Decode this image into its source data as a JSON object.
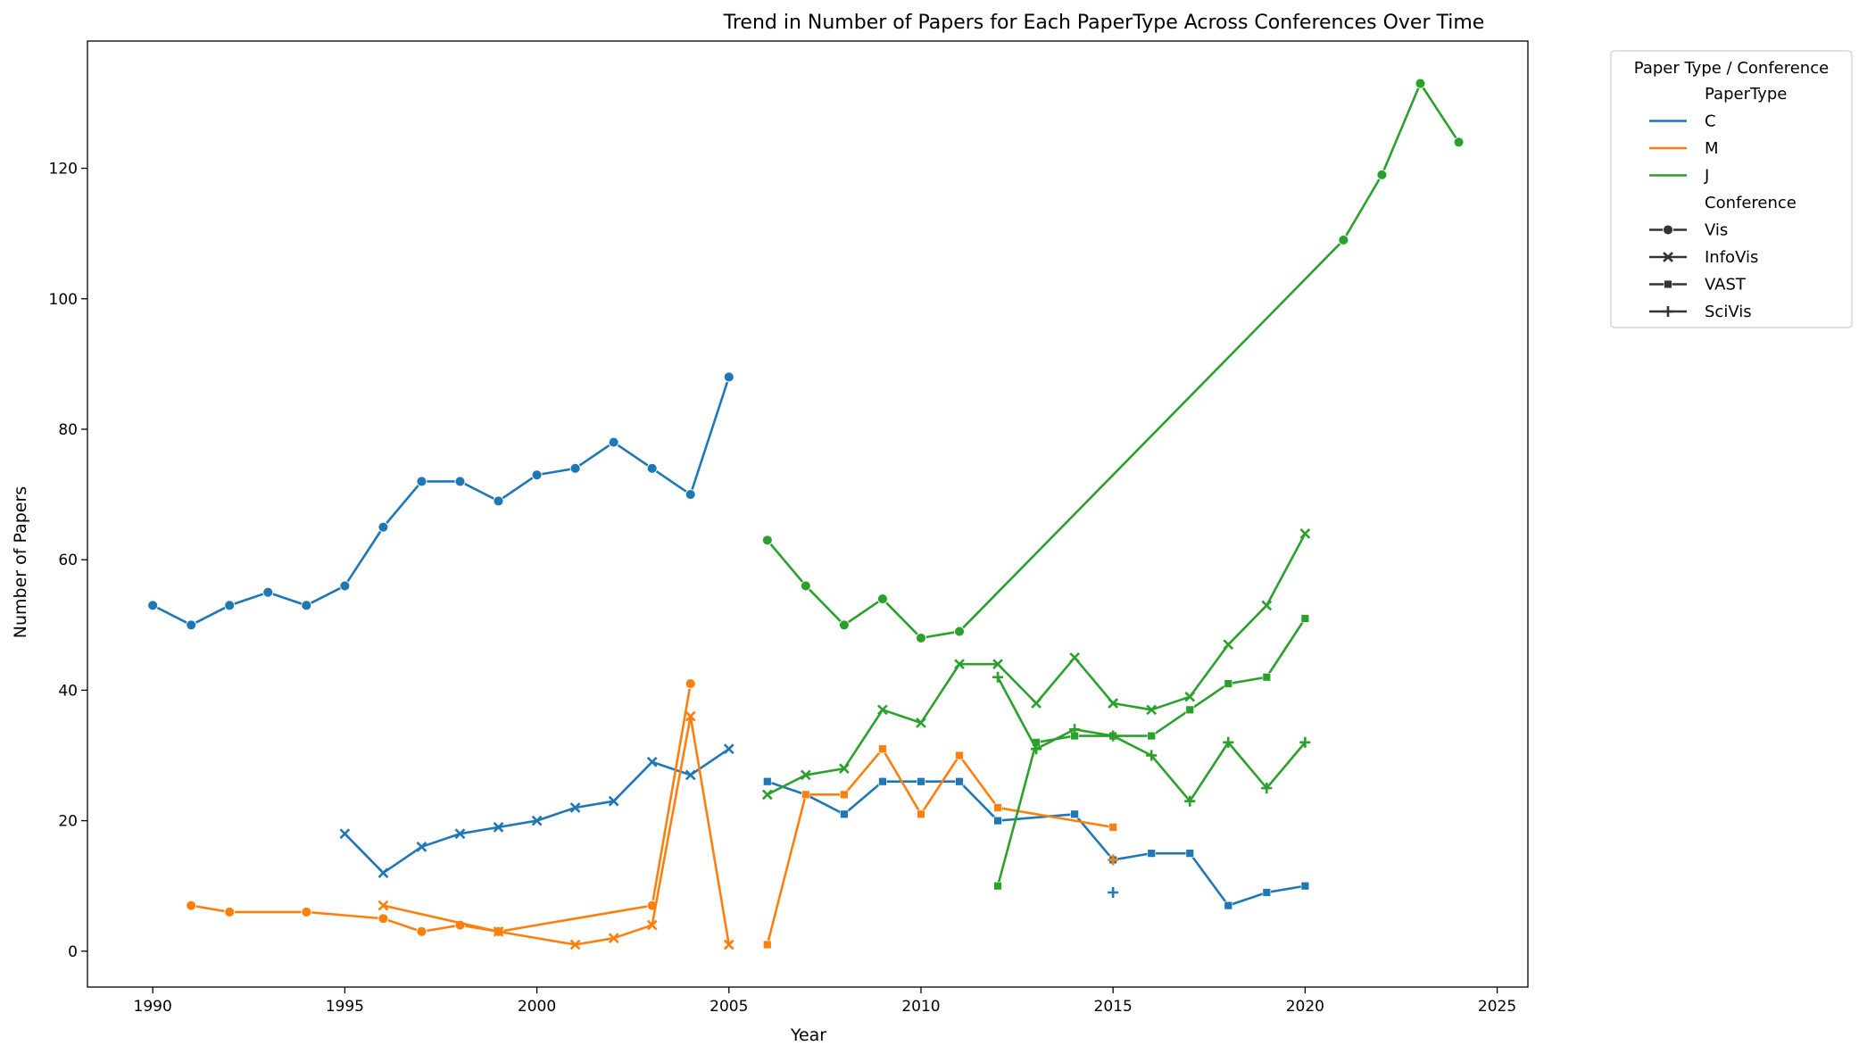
{
  "chart_data": {
    "type": "line",
    "title": "Trend in Number of Papers for Each PaperType Across Conferences Over Time",
    "xlabel": "Year",
    "ylabel": "Number of Papers",
    "xlim": [
      1988.3,
      2025.8
    ],
    "ylim": [
      -5.5,
      139.5
    ],
    "xticks": [
      1990,
      1995,
      2000,
      2005,
      2010,
      2015,
      2020,
      2025
    ],
    "yticks": [
      0,
      20,
      40,
      60,
      80,
      100,
      120
    ],
    "grid": false,
    "legend": {
      "title": "Paper Type / Conference",
      "placement": "outside-top-right",
      "hue_title": "PaperType",
      "hue_entries": [
        {
          "label": "C",
          "color": "#1f77b4"
        },
        {
          "label": "M",
          "color": "#ff7f0e"
        },
        {
          "label": "J",
          "color": "#2ca02c"
        }
      ],
      "style_title": "Conference",
      "style_entries": [
        {
          "label": "Vis",
          "marker": "circle"
        },
        {
          "label": "InfoVis",
          "marker": "x"
        },
        {
          "label": "VAST",
          "marker": "square"
        },
        {
          "label": "SciVis",
          "marker": "plus"
        }
      ]
    },
    "series": [
      {
        "paper_type": "C",
        "conference": "Vis",
        "color": "#1f77b4",
        "marker": "circle",
        "x": [
          1990,
          1991,
          1992,
          1993,
          1994,
          1995,
          1996,
          1997,
          1998,
          1999,
          2000,
          2001,
          2002,
          2003,
          2004,
          2005
        ],
        "y": [
          53,
          50,
          53,
          55,
          53,
          56,
          65,
          72,
          72,
          69,
          73,
          74,
          78,
          74,
          70,
          88
        ]
      },
      {
        "paper_type": "C",
        "conference": "InfoVis",
        "color": "#1f77b4",
        "marker": "x",
        "x": [
          1995,
          1996,
          1997,
          1998,
          1999,
          2000,
          2001,
          2002,
          2003,
          2004,
          2005
        ],
        "y": [
          18,
          12,
          16,
          18,
          19,
          20,
          22,
          23,
          29,
          27,
          31
        ]
      },
      {
        "paper_type": "C",
        "conference": "VAST",
        "color": "#1f77b4",
        "marker": "square",
        "x": [
          2006,
          2007,
          2008,
          2009,
          2010,
          2011,
          2012,
          2014,
          2015,
          2016,
          2017,
          2018,
          2019,
          2020
        ],
        "y": [
          26,
          24,
          21,
          26,
          26,
          26,
          20,
          21,
          14,
          15,
          15,
          7,
          9,
          10
        ]
      },
      {
        "paper_type": "C",
        "conference": "SciVis",
        "color": "#1f77b4",
        "marker": "plus",
        "x": [
          2015
        ],
        "y": [
          9
        ]
      },
      {
        "paper_type": "M",
        "conference": "Vis",
        "color": "#ff7f0e",
        "marker": "circle",
        "x": [
          1991,
          1992,
          1994,
          1996,
          1997,
          1998,
          1999,
          2003,
          2004
        ],
        "y": [
          7,
          6,
          6,
          5,
          3,
          4,
          3,
          7,
          41
        ]
      },
      {
        "paper_type": "M",
        "conference": "InfoVis",
        "color": "#ff7f0e",
        "marker": "x",
        "x": [
          1996,
          1999,
          2001,
          2002,
          2003,
          2004,
          2005
        ],
        "y": [
          7,
          3,
          1,
          2,
          4,
          36,
          1
        ]
      },
      {
        "paper_type": "M",
        "conference": "VAST",
        "color": "#ff7f0e",
        "marker": "square",
        "x": [
          2006,
          2007,
          2008,
          2009,
          2010,
          2011,
          2012,
          2015
        ],
        "y": [
          1,
          24,
          24,
          31,
          21,
          30,
          22,
          19
        ]
      },
      {
        "paper_type": "M",
        "conference": "SciVis",
        "color": "#ff7f0e",
        "marker": "plus",
        "x": [
          2015
        ],
        "y": [
          14
        ]
      },
      {
        "paper_type": "J",
        "conference": "Vis",
        "color": "#2ca02c",
        "marker": "circle",
        "x": [
          2006,
          2007,
          2008,
          2009,
          2010,
          2011,
          2021,
          2022,
          2023,
          2024
        ],
        "y": [
          63,
          56,
          50,
          54,
          48,
          49,
          109,
          119,
          133,
          124
        ]
      },
      {
        "paper_type": "J",
        "conference": "InfoVis",
        "color": "#2ca02c",
        "marker": "x",
        "x": [
          2006,
          2007,
          2008,
          2009,
          2010,
          2011,
          2012,
          2013,
          2014,
          2015,
          2016,
          2017,
          2018,
          2019,
          2020
        ],
        "y": [
          24,
          27,
          28,
          37,
          35,
          44,
          44,
          38,
          45,
          38,
          37,
          39,
          47,
          53,
          64
        ]
      },
      {
        "paper_type": "J",
        "conference": "VAST",
        "color": "#2ca02c",
        "marker": "square",
        "x": [
          2012,
          2013,
          2014,
          2015,
          2016,
          2017,
          2018,
          2019,
          2020
        ],
        "y": [
          10,
          32,
          33,
          33,
          33,
          37,
          41,
          42,
          51
        ]
      },
      {
        "paper_type": "J",
        "conference": "SciVis",
        "color": "#2ca02c",
        "marker": "plus",
        "x": [
          2012,
          2013,
          2014,
          2015,
          2016,
          2017,
          2018,
          2019,
          2020
        ],
        "y": [
          42,
          31,
          34,
          33,
          30,
          23,
          32,
          25,
          32
        ]
      }
    ]
  }
}
